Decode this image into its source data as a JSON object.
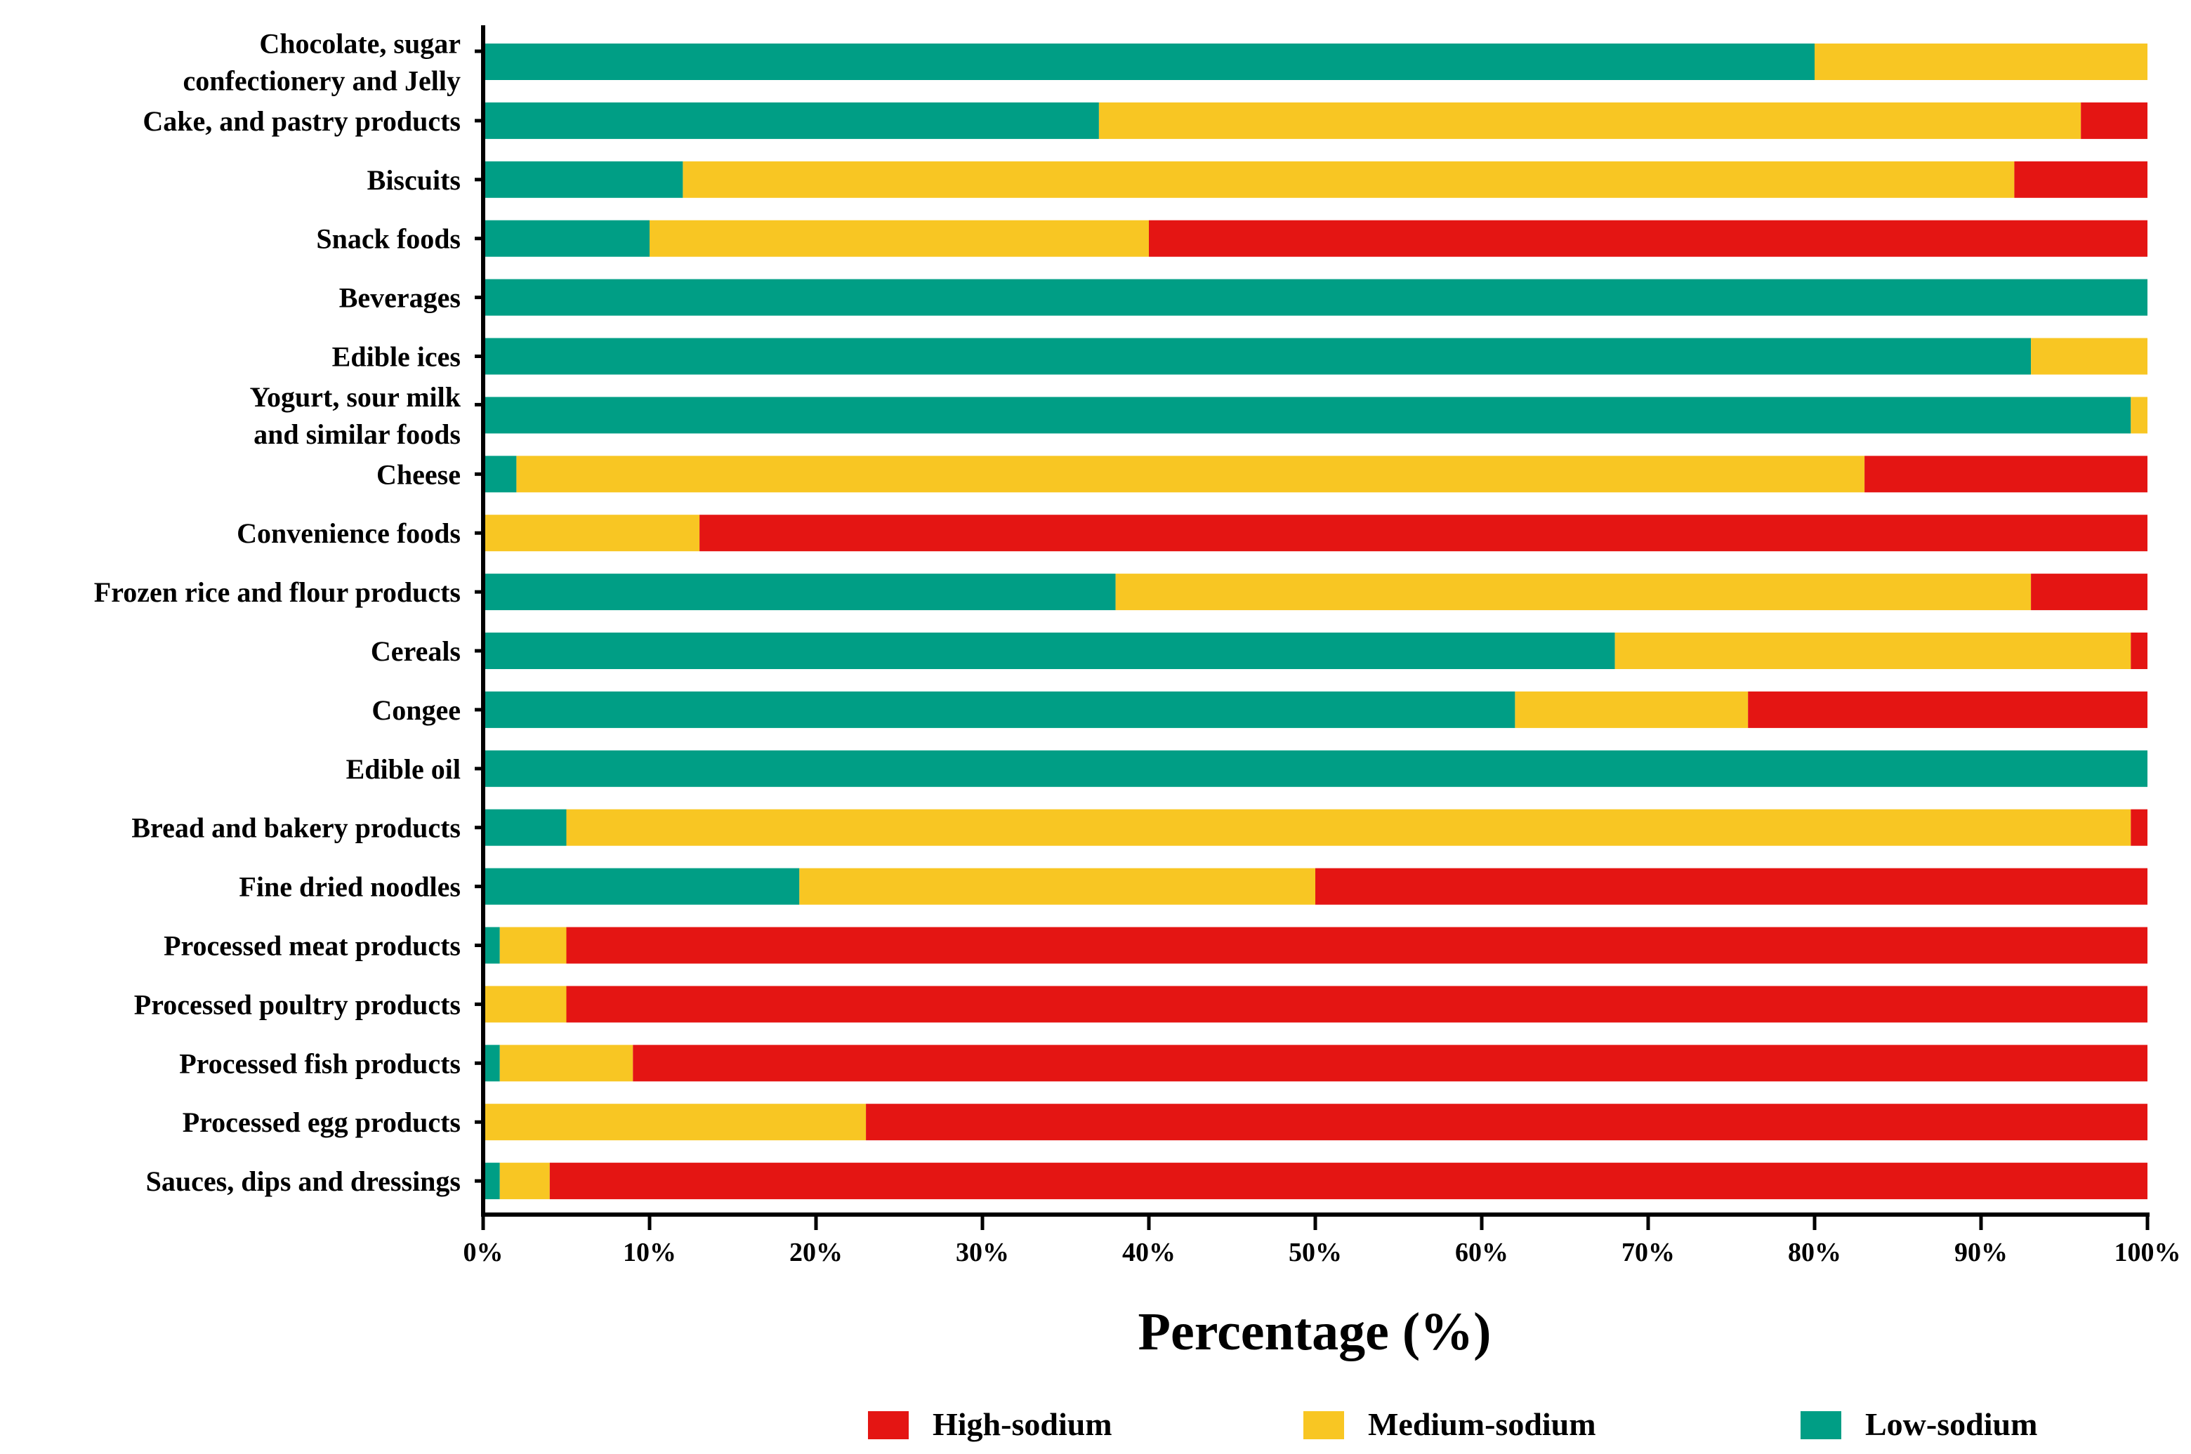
{
  "chart_data": {
    "type": "bar",
    "orientation": "horizontal",
    "stacked": true,
    "title": "",
    "xlabel": "Percentage (%)",
    "ylabel": "",
    "xlim": [
      0,
      100
    ],
    "x_ticks": [
      "0%",
      "10%",
      "20%",
      "30%",
      "40%",
      "50%",
      "60%",
      "70%",
      "80%",
      "90%",
      "100%"
    ],
    "grid": false,
    "legend_position": "bottom",
    "categories": [
      [
        "Chocolate, sugar",
        "confectionery and Jelly"
      ],
      [
        "Cake, and pastry products"
      ],
      [
        "Biscuits"
      ],
      [
        "Snack foods"
      ],
      [
        "Beverages"
      ],
      [
        "Edible ices"
      ],
      [
        "Yogurt, sour milk",
        "and similar foods"
      ],
      [
        "Cheese"
      ],
      [
        "Convenience foods"
      ],
      [
        "Frozen rice and flour products"
      ],
      [
        "Cereals"
      ],
      [
        "Congee"
      ],
      [
        "Edible oil"
      ],
      [
        "Bread and bakery products"
      ],
      [
        "Fine dried noodles"
      ],
      [
        "Processed meat products"
      ],
      [
        "Processed poultry products"
      ],
      [
        "Processed fish products"
      ],
      [
        "Processed egg products"
      ],
      [
        "Sauces, dips and dressings"
      ]
    ],
    "series": [
      {
        "name": "Low-sodium",
        "color": "#009E85",
        "values": [
          80,
          37,
          12,
          10,
          100,
          93,
          99,
          2,
          0,
          38,
          68,
          62,
          100,
          5,
          19,
          1,
          0,
          1,
          0,
          1
        ]
      },
      {
        "name": "Medium-sodium",
        "color": "#F8C623",
        "values": [
          20,
          59,
          80,
          30,
          0,
          7,
          1,
          81,
          13,
          55,
          31,
          14,
          0,
          94,
          31,
          4,
          5,
          8,
          23,
          3
        ]
      },
      {
        "name": "High-sodium",
        "color": "#E41513",
        "values": [
          0,
          4,
          8,
          60,
          0,
          0,
          0,
          17,
          87,
          7,
          1,
          24,
          0,
          1,
          50,
          95,
          95,
          91,
          77,
          96
        ]
      }
    ],
    "legend_order": [
      "High-sodium",
      "Medium-sodium",
      "Low-sodium"
    ]
  }
}
